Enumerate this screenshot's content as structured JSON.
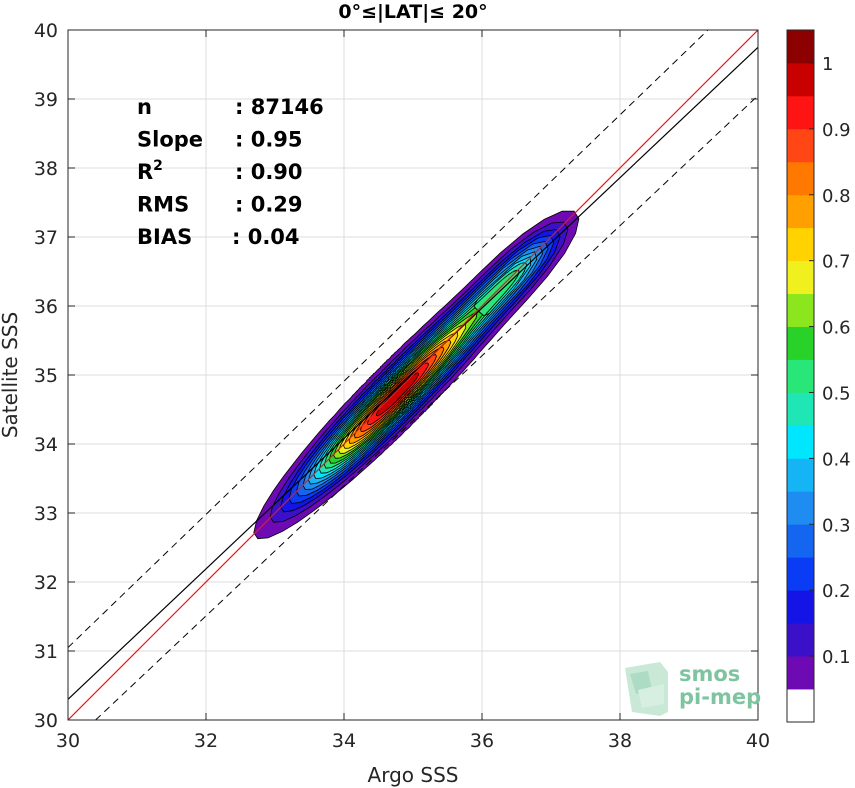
{
  "chart_data": {
    "type": "heatmap",
    "subtype": "density-contour",
    "title": "0°≤|LAT|≤ 20°",
    "xlabel": "Argo SSS",
    "ylabel": "Satellite SSS",
    "xlim": [
      30,
      40
    ],
    "ylim": [
      30,
      40
    ],
    "xticks": [
      "30",
      "32",
      "34",
      "36",
      "38",
      "40"
    ],
    "yticks": [
      "30",
      "31",
      "32",
      "33",
      "34",
      "35",
      "36",
      "37",
      "38",
      "39",
      "40"
    ],
    "grid": true,
    "stats": [
      {
        "label": "n",
        "value": ": 87146"
      },
      {
        "label": "Slope",
        "value": ": 0.95"
      },
      {
        "label": "R",
        "sup": "2",
        "value": ": 0.90"
      },
      {
        "label": "RMS",
        "value": ": 0.29"
      },
      {
        "label": "BIAS",
        "value": ": 0.04"
      }
    ],
    "identity_line": {
      "color": "#e41a1c",
      "points": [
        [
          30,
          30
        ],
        [
          40,
          40
        ]
      ]
    },
    "fit_line": {
      "color": "#000000",
      "slope": 0.95,
      "points": [
        [
          30,
          30.3
        ],
        [
          40,
          39.75
        ]
      ]
    },
    "envelope_lines": [
      {
        "style": "dashed",
        "points": [
          [
            30,
            31.05
          ],
          [
            40,
            40.7
          ]
        ]
      },
      {
        "style": "dashed",
        "points": [
          [
            30.4,
            30
          ],
          [
            40,
            39.05
          ]
        ]
      }
    ],
    "density_peaks": [
      {
        "x": 34.8,
        "y": 34.75,
        "density": 1.0
      },
      {
        "x": 36.5,
        "y": 36.5,
        "density": 0.5
      }
    ],
    "colorbar": {
      "ticks": [
        "0.1",
        "0.2",
        "0.3",
        "0.4",
        "0.5",
        "0.6",
        "0.7",
        "0.8",
        "0.9",
        "1"
      ],
      "levels": [
        0,
        0.05,
        0.1,
        0.15,
        0.2,
        0.25,
        0.3,
        0.35,
        0.4,
        0.45,
        0.5,
        0.55,
        0.6,
        0.65,
        0.7,
        0.75,
        0.8,
        0.85,
        0.9,
        0.95,
        1
      ],
      "colors": [
        "#ffffff",
        "#6e0ab4",
        "#3a10c8",
        "#1414e6",
        "#0a3cf5",
        "#1466f0",
        "#1e8cf0",
        "#14b4f5",
        "#00e6ff",
        "#1ee6b4",
        "#28e678",
        "#28d228",
        "#8ce61e",
        "#f0f01e",
        "#ffd200",
        "#ffa000",
        "#ff7800",
        "#ff4614",
        "#ff1414",
        "#c80000",
        "#8c0000"
      ]
    }
  },
  "logo": {
    "line1": "smos",
    "line2": "pi-mep"
  }
}
